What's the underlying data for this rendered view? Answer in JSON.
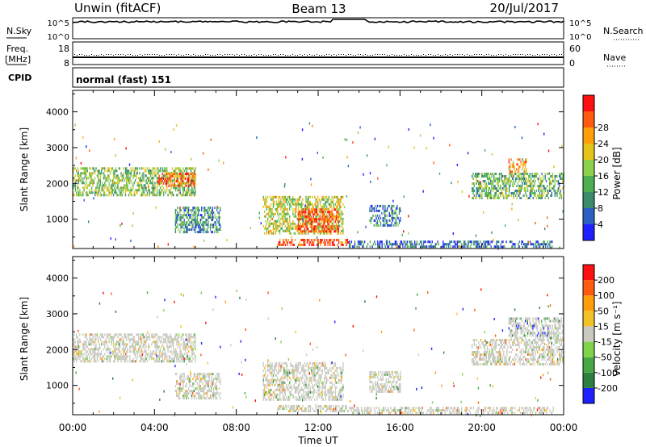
{
  "header": {
    "site": "Unwin (fitACF)",
    "beam": "Beam 13",
    "date": "20/Jul/2017"
  },
  "top_panels": {
    "nsky": {
      "label": "N.Sky",
      "ticks": [
        "10^5",
        "10^0"
      ]
    },
    "nsearch": {
      "label": "N.Search",
      "ticks": [
        "10^5",
        "10^0"
      ]
    },
    "freq": {
      "label_top": "Freq.",
      "label_bottom": "[MHz]",
      "ticks": [
        "18",
        "8"
      ]
    },
    "nave": {
      "label": "Nave",
      "ticks": [
        "60",
        "0"
      ]
    },
    "cpid": {
      "label": "CPID",
      "value": "normal (fast) 151"
    }
  },
  "chart_data": [
    {
      "type": "heatmap",
      "name": "power",
      "xlabel": "",
      "ylabel": "Slant Range [km]",
      "ylim": [
        180,
        4600
      ],
      "y_ticks": [
        1000,
        2000,
        3000,
        4000
      ],
      "x_ticks_hours": [
        0,
        4,
        8,
        12,
        16,
        20,
        24
      ],
      "colorbar": {
        "label": "Power [dB]",
        "ticks": [
          "4",
          "8",
          "12",
          "16",
          "20",
          "24",
          "28"
        ],
        "colors": [
          "#1f1fff",
          "#2b5fc4",
          "#3a8c6a",
          "#4caf50",
          "#8fd14f",
          "#e6c31a",
          "#ff9e0a",
          "#ff5a10",
          "#ff1010"
        ]
      },
      "echo_regions": [
        {
          "t0": 0.0,
          "t1": 6.0,
          "r0": 1650,
          "r1": 2450,
          "level": 0.45
        },
        {
          "t0": 4.2,
          "t1": 6.0,
          "r0": 1900,
          "r1": 2300,
          "level": 0.8
        },
        {
          "t0": 5.0,
          "t1": 7.2,
          "r0": 650,
          "r1": 1350,
          "level": 0.3
        },
        {
          "t0": 9.3,
          "t1": 13.2,
          "r0": 600,
          "r1": 1650,
          "level": 0.55
        },
        {
          "t0": 11.0,
          "t1": 13.0,
          "r0": 650,
          "r1": 1300,
          "level": 0.9
        },
        {
          "t0": 10.0,
          "t1": 13.5,
          "r0": 250,
          "r1": 450,
          "level": 0.85
        },
        {
          "t0": 13.5,
          "t1": 23.5,
          "r0": 200,
          "r1": 400,
          "level": 0.2
        },
        {
          "t0": 14.5,
          "t1": 16.0,
          "r0": 800,
          "r1": 1400,
          "level": 0.25
        },
        {
          "t0": 19.5,
          "t1": 24.0,
          "r0": 1600,
          "r1": 2300,
          "level": 0.4
        },
        {
          "t0": 21.3,
          "t1": 22.2,
          "r0": 2300,
          "r1": 2700,
          "level": 0.7
        }
      ]
    },
    {
      "type": "heatmap",
      "name": "velocity",
      "xlabel": "Time UT",
      "ylabel": "Slant Range [km]",
      "ylim": [
        180,
        4600
      ],
      "y_ticks": [
        1000,
        2000,
        3000,
        4000
      ],
      "x_ticks_hours": [
        0,
        4,
        8,
        12,
        16,
        20,
        24
      ],
      "x_tick_labels": [
        "00:00",
        "04:00",
        "08:00",
        "12:00",
        "16:00",
        "20:00",
        "00:00"
      ],
      "colorbar": {
        "label": "Velocity [m s⁻¹]",
        "ticks": [
          "200",
          "100",
          "50",
          "15",
          "-15",
          "-50",
          "-100",
          "-200"
        ],
        "colors": [
          "#1f1fff",
          "#2b7f40",
          "#45a845",
          "#7fd34a",
          "#c9c9c0",
          "#f2c326",
          "#ff9e0a",
          "#ff5a10",
          "#ff1010"
        ]
      },
      "echo_regions": [
        {
          "t0": 0.0,
          "t1": 6.0,
          "r0": 1650,
          "r1": 2450,
          "level": 0.5
        },
        {
          "t0": 5.0,
          "t1": 7.2,
          "r0": 650,
          "r1": 1350,
          "level": 0.5
        },
        {
          "t0": 9.3,
          "t1": 13.2,
          "r0": 600,
          "r1": 1650,
          "level": 0.5
        },
        {
          "t0": 10.0,
          "t1": 13.5,
          "r0": 250,
          "r1": 450,
          "level": 0.62
        },
        {
          "t0": 13.5,
          "t1": 23.5,
          "r0": 200,
          "r1": 400,
          "level": 0.6
        },
        {
          "t0": 14.5,
          "t1": 16.0,
          "r0": 800,
          "r1": 1400,
          "level": 0.5
        },
        {
          "t0": 19.5,
          "t1": 24.0,
          "r0": 1600,
          "r1": 2300,
          "level": 0.55
        },
        {
          "t0": 21.3,
          "t1": 24.0,
          "r0": 2300,
          "r1": 2900,
          "level": 0.15
        }
      ]
    }
  ]
}
